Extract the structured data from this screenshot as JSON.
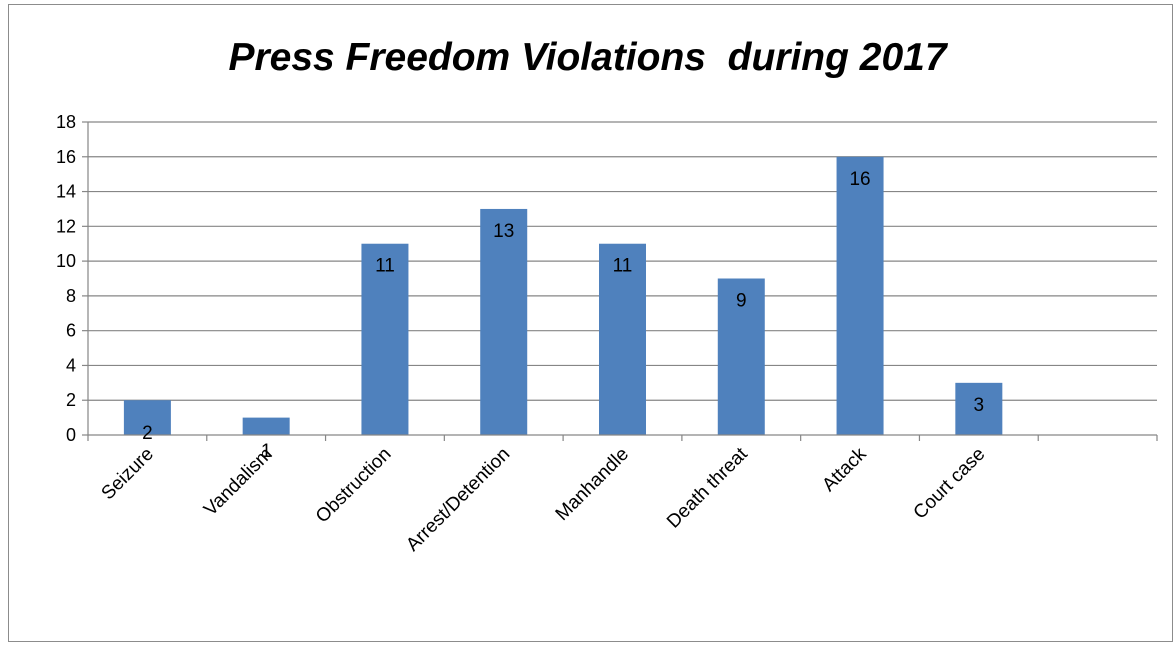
{
  "chart_data": {
    "type": "bar",
    "title": "Press Freedom Violations  during 2017",
    "categories": [
      "Seizure",
      "Vandalism",
      "Obstruction",
      "Arrest/Detention",
      "Manhandle",
      "Death threat",
      "Attack",
      "Court case",
      ""
    ],
    "values": [
      2,
      1,
      11,
      13,
      11,
      9,
      16,
      3,
      null
    ],
    "ylim": [
      0,
      18
    ],
    "yticks": [
      0,
      2,
      4,
      6,
      8,
      10,
      12,
      14,
      16,
      18
    ],
    "grid": true,
    "legend": "none",
    "data_labels": true,
    "colors": {
      "bar": "#4f81bd",
      "grid": "#868686",
      "axis": "#868686",
      "frame": "#8c8c8c"
    }
  }
}
